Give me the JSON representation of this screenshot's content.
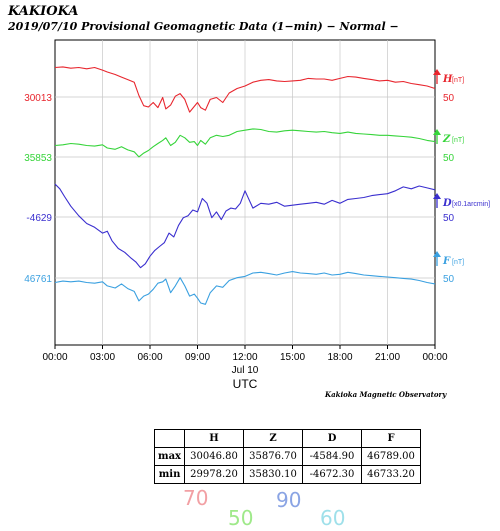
{
  "header": {
    "station": "KAKIOKA",
    "subtitle": "2019/07/10  Provisional Geomagnetic Data (1−min)  − Normal −"
  },
  "credit": "Kakioka Magnetic Observatory",
  "chart_data": {
    "type": "line",
    "x_ticks": [
      "00:00",
      "03:00",
      "06:00",
      "09:00",
      "12:00",
      "15:00",
      "18:00",
      "21:00",
      "00:00"
    ],
    "x_sublabel": "Jul 10",
    "x_unit_label": "UTC",
    "x_range_hours": [
      0,
      24
    ],
    "series": [
      {
        "name": "H",
        "unit": "[nT]",
        "color": "#e8262e",
        "left_value": "30013",
        "scale_label": "50",
        "x": [
          0,
          0.5,
          1,
          1.5,
          2,
          2.5,
          3,
          3.3,
          3.8,
          4.2,
          4.6,
          5,
          5.3,
          5.6,
          5.9,
          6.2,
          6.5,
          6.8,
          7.0,
          7.3,
          7.6,
          7.9,
          8.2,
          8.5,
          8.8,
          9.0,
          9.2,
          9.5,
          9.8,
          10.2,
          10.6,
          11,
          11.5,
          12,
          12.5,
          13,
          13.5,
          14,
          14.5,
          15,
          15.5,
          16,
          16.5,
          17,
          17.5,
          18,
          18.5,
          19,
          19.5,
          20,
          20.5,
          21,
          21.5,
          22,
          22.5,
          23,
          23.5,
          24
        ],
        "y": [
          30045,
          30046,
          30044,
          30045,
          30043,
          30045,
          30041,
          30038,
          30034,
          30030,
          30026,
          30022,
          30001,
          29985,
          29983,
          29990,
          29982,
          29998,
          29980,
          29986,
          30000,
          30004,
          29995,
          29975,
          29984,
          29990,
          29982,
          29978,
          29995,
          29998,
          29990,
          30005,
          30012,
          30016,
          30022,
          30025,
          30026,
          30024,
          30023,
          30024,
          30025,
          30028,
          30027,
          30027,
          30025,
          30028,
          30031,
          30030,
          30028,
          30026,
          30024,
          30025,
          30022,
          30023,
          30020,
          30018,
          30016,
          30012
        ]
      },
      {
        "name": "Z",
        "unit": "[nT]",
        "color": "#36d43a",
        "left_value": "35853",
        "scale_label": "50",
        "x": [
          0,
          0.5,
          1,
          1.5,
          2,
          2.5,
          3,
          3.3,
          3.8,
          4.2,
          4.6,
          5,
          5.3,
          5.6,
          5.9,
          6.2,
          6.5,
          6.8,
          7.0,
          7.3,
          7.6,
          7.9,
          8.2,
          8.5,
          8.8,
          9.0,
          9.2,
          9.5,
          9.8,
          10.2,
          10.6,
          11,
          11.5,
          12,
          12.5,
          13,
          13.5,
          14,
          14.5,
          15,
          15.5,
          16,
          16.5,
          17,
          17.5,
          18,
          18.5,
          19,
          19.5,
          20,
          20.5,
          21,
          21.5,
          22,
          22.5,
          23,
          23.5,
          24
        ],
        "y": [
          35850,
          35851,
          35853,
          35852,
          35850,
          35849,
          35851,
          35846,
          35844,
          35848,
          35843,
          35840,
          35832,
          35838,
          35842,
          35848,
          35853,
          35858,
          35862,
          35850,
          35855,
          35866,
          35862,
          35855,
          35856,
          35850,
          35858,
          35852,
          35862,
          35866,
          35864,
          35866,
          35872,
          35874,
          35876,
          35875,
          35872,
          35871,
          35873,
          35874,
          35873,
          35872,
          35871,
          35872,
          35870,
          35869,
          35871,
          35869,
          35868,
          35867,
          35866,
          35866,
          35865,
          35864,
          35863,
          35861,
          35858,
          35856
        ]
      },
      {
        "name": "D",
        "unit": "[x0.1arcmin]",
        "color": "#3a2fcf",
        "left_value": "-4629",
        "scale_label": "50",
        "x": [
          0,
          0.3,
          0.6,
          1,
          1.5,
          2,
          2.5,
          3,
          3.3,
          3.6,
          4,
          4.4,
          4.8,
          5.1,
          5.4,
          5.7,
          6,
          6.3,
          6.6,
          6.9,
          7.2,
          7.5,
          7.8,
          8.1,
          8.4,
          8.7,
          9.0,
          9.3,
          9.6,
          9.9,
          10.2,
          10.5,
          10.8,
          11.1,
          11.4,
          11.7,
          12,
          12.5,
          13,
          13.5,
          14,
          14.5,
          15,
          15.5,
          16,
          16.5,
          17,
          17.5,
          18,
          18.5,
          19,
          19.5,
          20,
          20.5,
          21,
          21.5,
          22,
          22.5,
          23,
          23.5,
          24
        ],
        "y": [
          -4585,
          -4590,
          -4598,
          -4608,
          -4618,
          -4626,
          -4630,
          -4636,
          -4634,
          -4644,
          -4652,
          -4656,
          -4662,
          -4666,
          -4672,
          -4668,
          -4660,
          -4654,
          -4650,
          -4646,
          -4636,
          -4640,
          -4628,
          -4620,
          -4618,
          -4612,
          -4614,
          -4600,
          -4605,
          -4620,
          -4614,
          -4622,
          -4613,
          -4610,
          -4611,
          -4605,
          -4592,
          -4610,
          -4605,
          -4606,
          -4604,
          -4608,
          -4607,
          -4606,
          -4605,
          -4604,
          -4606,
          -4602,
          -4605,
          -4601,
          -4600,
          -4599,
          -4597,
          -4596,
          -4595,
          -4592,
          -4588,
          -4590,
          -4587,
          -4589,
          -4591
        ]
      },
      {
        "name": "F",
        "unit": "[nT]",
        "color": "#3aa0e0",
        "left_value": "46761",
        "scale_label": "50",
        "x": [
          0,
          0.5,
          1,
          1.5,
          2,
          2.5,
          3,
          3.3,
          3.8,
          4.2,
          4.6,
          5,
          5.3,
          5.6,
          5.9,
          6.2,
          6.5,
          6.8,
          7.0,
          7.3,
          7.6,
          7.9,
          8.2,
          8.5,
          8.8,
          9.0,
          9.2,
          9.5,
          9.8,
          10.2,
          10.6,
          11,
          11.5,
          12,
          12.5,
          13,
          13.5,
          14,
          14.5,
          15,
          15.5,
          16,
          16.5,
          17,
          17.5,
          18,
          18.5,
          19,
          19.5,
          20,
          20.5,
          21,
          21.5,
          22,
          22.5,
          23,
          23.5,
          24
        ],
        "y": [
          46765,
          46767,
          46766,
          46767,
          46765,
          46764,
          46766,
          46760,
          46757,
          46763,
          46756,
          46752,
          46738,
          46745,
          46748,
          46755,
          46764,
          46766,
          46770,
          46750,
          46760,
          46772,
          46760,
          46745,
          46748,
          46742,
          46735,
          46733,
          46750,
          46760,
          46758,
          46768,
          46772,
          46774,
          46779,
          46780,
          46778,
          46776,
          46779,
          46781,
          46779,
          46778,
          46777,
          46779,
          46776,
          46777,
          46780,
          46778,
          46776,
          46775,
          46774,
          46773,
          46772,
          46771,
          46770,
          46768,
          46765,
          46763
        ]
      }
    ],
    "ylim": {
      "H": [
        29950,
        30060
      ],
      "Z": [
        35780,
        35890
      ],
      "D": [
        -4690,
        -4560
      ],
      "F": [
        46710,
        46820
      ]
    },
    "grid": true
  },
  "stats_table": {
    "headers": [
      "",
      "H",
      "Z",
      "D",
      "F"
    ],
    "rows": [
      [
        "max",
        "30046.80",
        "35876.70",
        "-4584.90",
        "46789.00"
      ],
      [
        "min",
        "29978.20",
        "35830.10",
        "-4672.30",
        "46733.20"
      ]
    ]
  },
  "handwritten": [
    {
      "text": "70",
      "color": "#f2a0a4"
    },
    {
      "text": "50",
      "color": "#9fe98a"
    },
    {
      "text": "90",
      "color": "#8aa4e4"
    },
    {
      "text": "60",
      "color": "#9fe0ea"
    }
  ]
}
